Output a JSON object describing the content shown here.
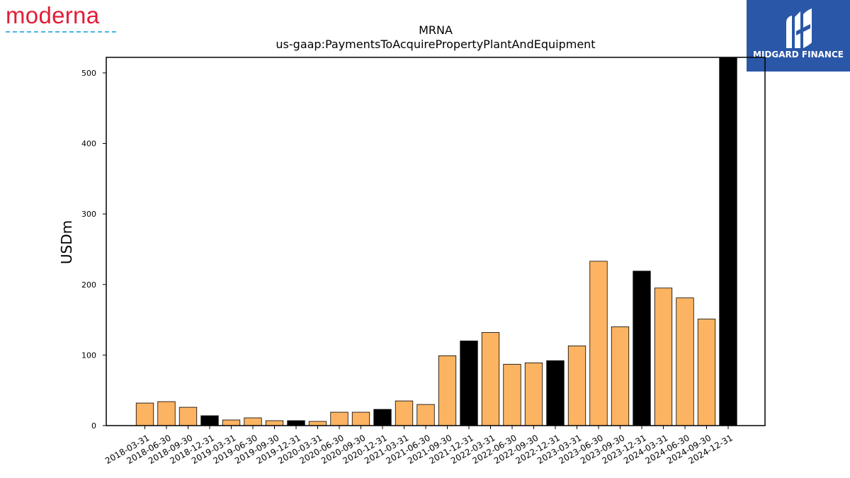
{
  "branding": {
    "company_logo_text": "moderna",
    "publisher_logo_text": "MIDGARD FINANCE"
  },
  "colors": {
    "bar_regular": "#fdb462",
    "bar_highlight": "#000000",
    "edge": "#000000"
  },
  "chart_data": {
    "type": "bar",
    "title": "MRNA",
    "subtitle": "us-gaap:PaymentsToAcquirePropertyPlantAndEquipment",
    "xlabel": "",
    "ylabel": "USDm",
    "ylim": [
      0,
      522
    ],
    "yticks": [
      0,
      100,
      200,
      300,
      400,
      500
    ],
    "grid": false,
    "legend": "none",
    "categories": [
      "2018-03-31",
      "2018-06-30",
      "2018-09-30",
      "2018-12-31",
      "2019-03-31",
      "2019-06-30",
      "2019-09-30",
      "2019-12-31",
      "2020-03-31",
      "2020-06-30",
      "2020-09-30",
      "2020-12-31",
      "2021-03-31",
      "2021-06-30",
      "2021-09-30",
      "2021-12-31",
      "2022-03-31",
      "2022-06-30",
      "2022-09-30",
      "2022-12-31",
      "2023-03-31",
      "2023-06-30",
      "2023-09-30",
      "2023-12-31",
      "2024-03-31",
      "2024-06-30",
      "2024-09-30",
      "2024-12-31"
    ],
    "values": [
      32,
      34,
      26,
      14,
      8,
      11,
      7,
      7,
      6,
      19,
      19,
      23,
      35,
      30,
      99,
      120,
      132,
      87,
      89,
      92,
      113,
      233,
      140,
      219,
      195,
      181,
      151,
      522
    ],
    "highlight": [
      false,
      false,
      false,
      true,
      false,
      false,
      false,
      true,
      false,
      false,
      false,
      true,
      false,
      false,
      false,
      true,
      false,
      false,
      false,
      true,
      false,
      false,
      false,
      true,
      false,
      false,
      false,
      true
    ]
  }
}
